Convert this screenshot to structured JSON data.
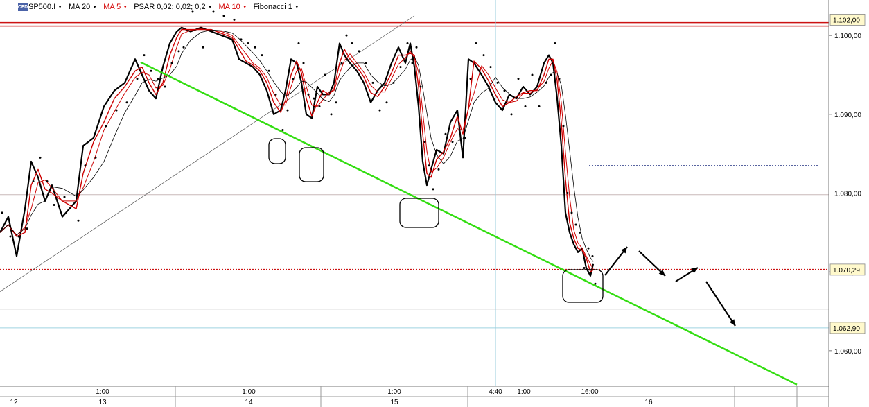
{
  "toolbar": {
    "logo": "CFD",
    "symbol": "SP500.I",
    "ma20": "MA 20",
    "ma5": "MA 5",
    "psar": "PSAR 0,02; 0,02; 0,2",
    "ma10": "MA 10",
    "fib": "Fibonacci 1"
  },
  "colors": {
    "price": "#000000",
    "ma_fast": "#cc0000",
    "trendline": "#33dd11",
    "resistance": "#cc1111",
    "support": "#cc1111",
    "cursor": "#99ccdd",
    "badge_fill": "#fff9cc"
  },
  "chart_data": {
    "type": "line",
    "y_axis": {
      "range": [
        1.0555,
        1.1045
      ],
      "ticks": [
        "1.100,00",
        "1.090,00",
        "1.080,00",
        "1.070,00",
        "1.060,00"
      ],
      "tick_values": [
        1.1,
        1.09,
        1.08,
        1.07,
        1.06
      ]
    },
    "x_axis": {
      "time_labels": [
        "1:00",
        "1:00",
        "1:00",
        "4:40",
        "1:00",
        "16:00"
      ],
      "day_labels": [
        "12",
        "13",
        "14",
        "15",
        "16"
      ]
    },
    "price_badges": [
      {
        "label": "1.102,00",
        "value": 1.102
      },
      {
        "label": "1.070,29",
        "value": 1.07029
      },
      {
        "label": "1.062,90",
        "value": 1.0629
      }
    ],
    "series": [
      {
        "role": "price",
        "x": [
          0,
          12,
          24,
          36,
          45,
          55,
          65,
          75,
          90,
          110,
          120,
          135,
          150,
          165,
          180,
          195,
          205,
          215,
          225,
          235,
          245,
          255,
          262,
          275,
          290,
          305,
          320,
          335,
          345,
          355,
          365,
          375,
          385,
          395,
          405,
          412,
          420,
          428,
          435,
          442,
          450,
          458,
          466,
          475,
          482,
          490,
          497,
          505,
          515,
          525,
          535,
          545,
          555,
          565,
          575,
          585,
          592,
          598,
          604,
          610,
          616,
          622,
          630,
          640,
          650,
          660,
          668,
          676,
          684,
          695,
          705,
          715,
          725,
          735,
          745,
          755,
          765,
          775,
          785,
          792,
          798,
          804,
          810,
          816,
          822,
          828,
          834,
          840,
          846,
          852,
          856
        ],
        "y": [
          1.075,
          1.077,
          1.072,
          1.078,
          1.084,
          1.082,
          1.079,
          1.081,
          1.077,
          1.079,
          1.086,
          1.087,
          1.091,
          1.093,
          1.094,
          1.097,
          1.095,
          1.093,
          1.092,
          1.096,
          1.099,
          1.1005,
          1.101,
          1.1005,
          1.101,
          1.1005,
          1.1,
          1.0995,
          1.097,
          1.0965,
          1.096,
          1.095,
          1.093,
          1.09,
          1.0905,
          1.093,
          1.097,
          1.0965,
          1.094,
          1.09,
          1.0895,
          1.0935,
          1.0925,
          1.0925,
          1.094,
          1.099,
          1.0975,
          1.0965,
          1.0955,
          1.094,
          1.0915,
          1.093,
          1.094,
          1.0965,
          1.0985,
          1.0965,
          1.099,
          1.096,
          1.091,
          1.084,
          1.081,
          1.083,
          1.0855,
          1.085,
          1.089,
          1.0905,
          1.0845,
          1.097,
          1.0965,
          1.095,
          1.0935,
          1.0915,
          1.0905,
          1.0925,
          1.092,
          1.0935,
          1.0925,
          1.0935,
          1.0965,
          1.0975,
          1.0965,
          1.092,
          1.086,
          1.0775,
          1.075,
          1.0735,
          1.0725,
          1.073,
          1.0705,
          1.0695,
          1.071
        ]
      }
    ],
    "resistance_level": 1.10145,
    "support_level": 1.07029,
    "lower_line_1": 1.0798,
    "lower_line_2": 1.0653,
    "lower_line_3": 1.0629,
    "dashed_level": 1.0835,
    "trendline": {
      "from": [
        203,
        1.0966
      ],
      "to": [
        1150,
        1.0557
      ]
    },
    "diagonal": {
      "from": [
        0,
        1.0675
      ],
      "to": [
        598,
        1.1025
      ]
    }
  }
}
